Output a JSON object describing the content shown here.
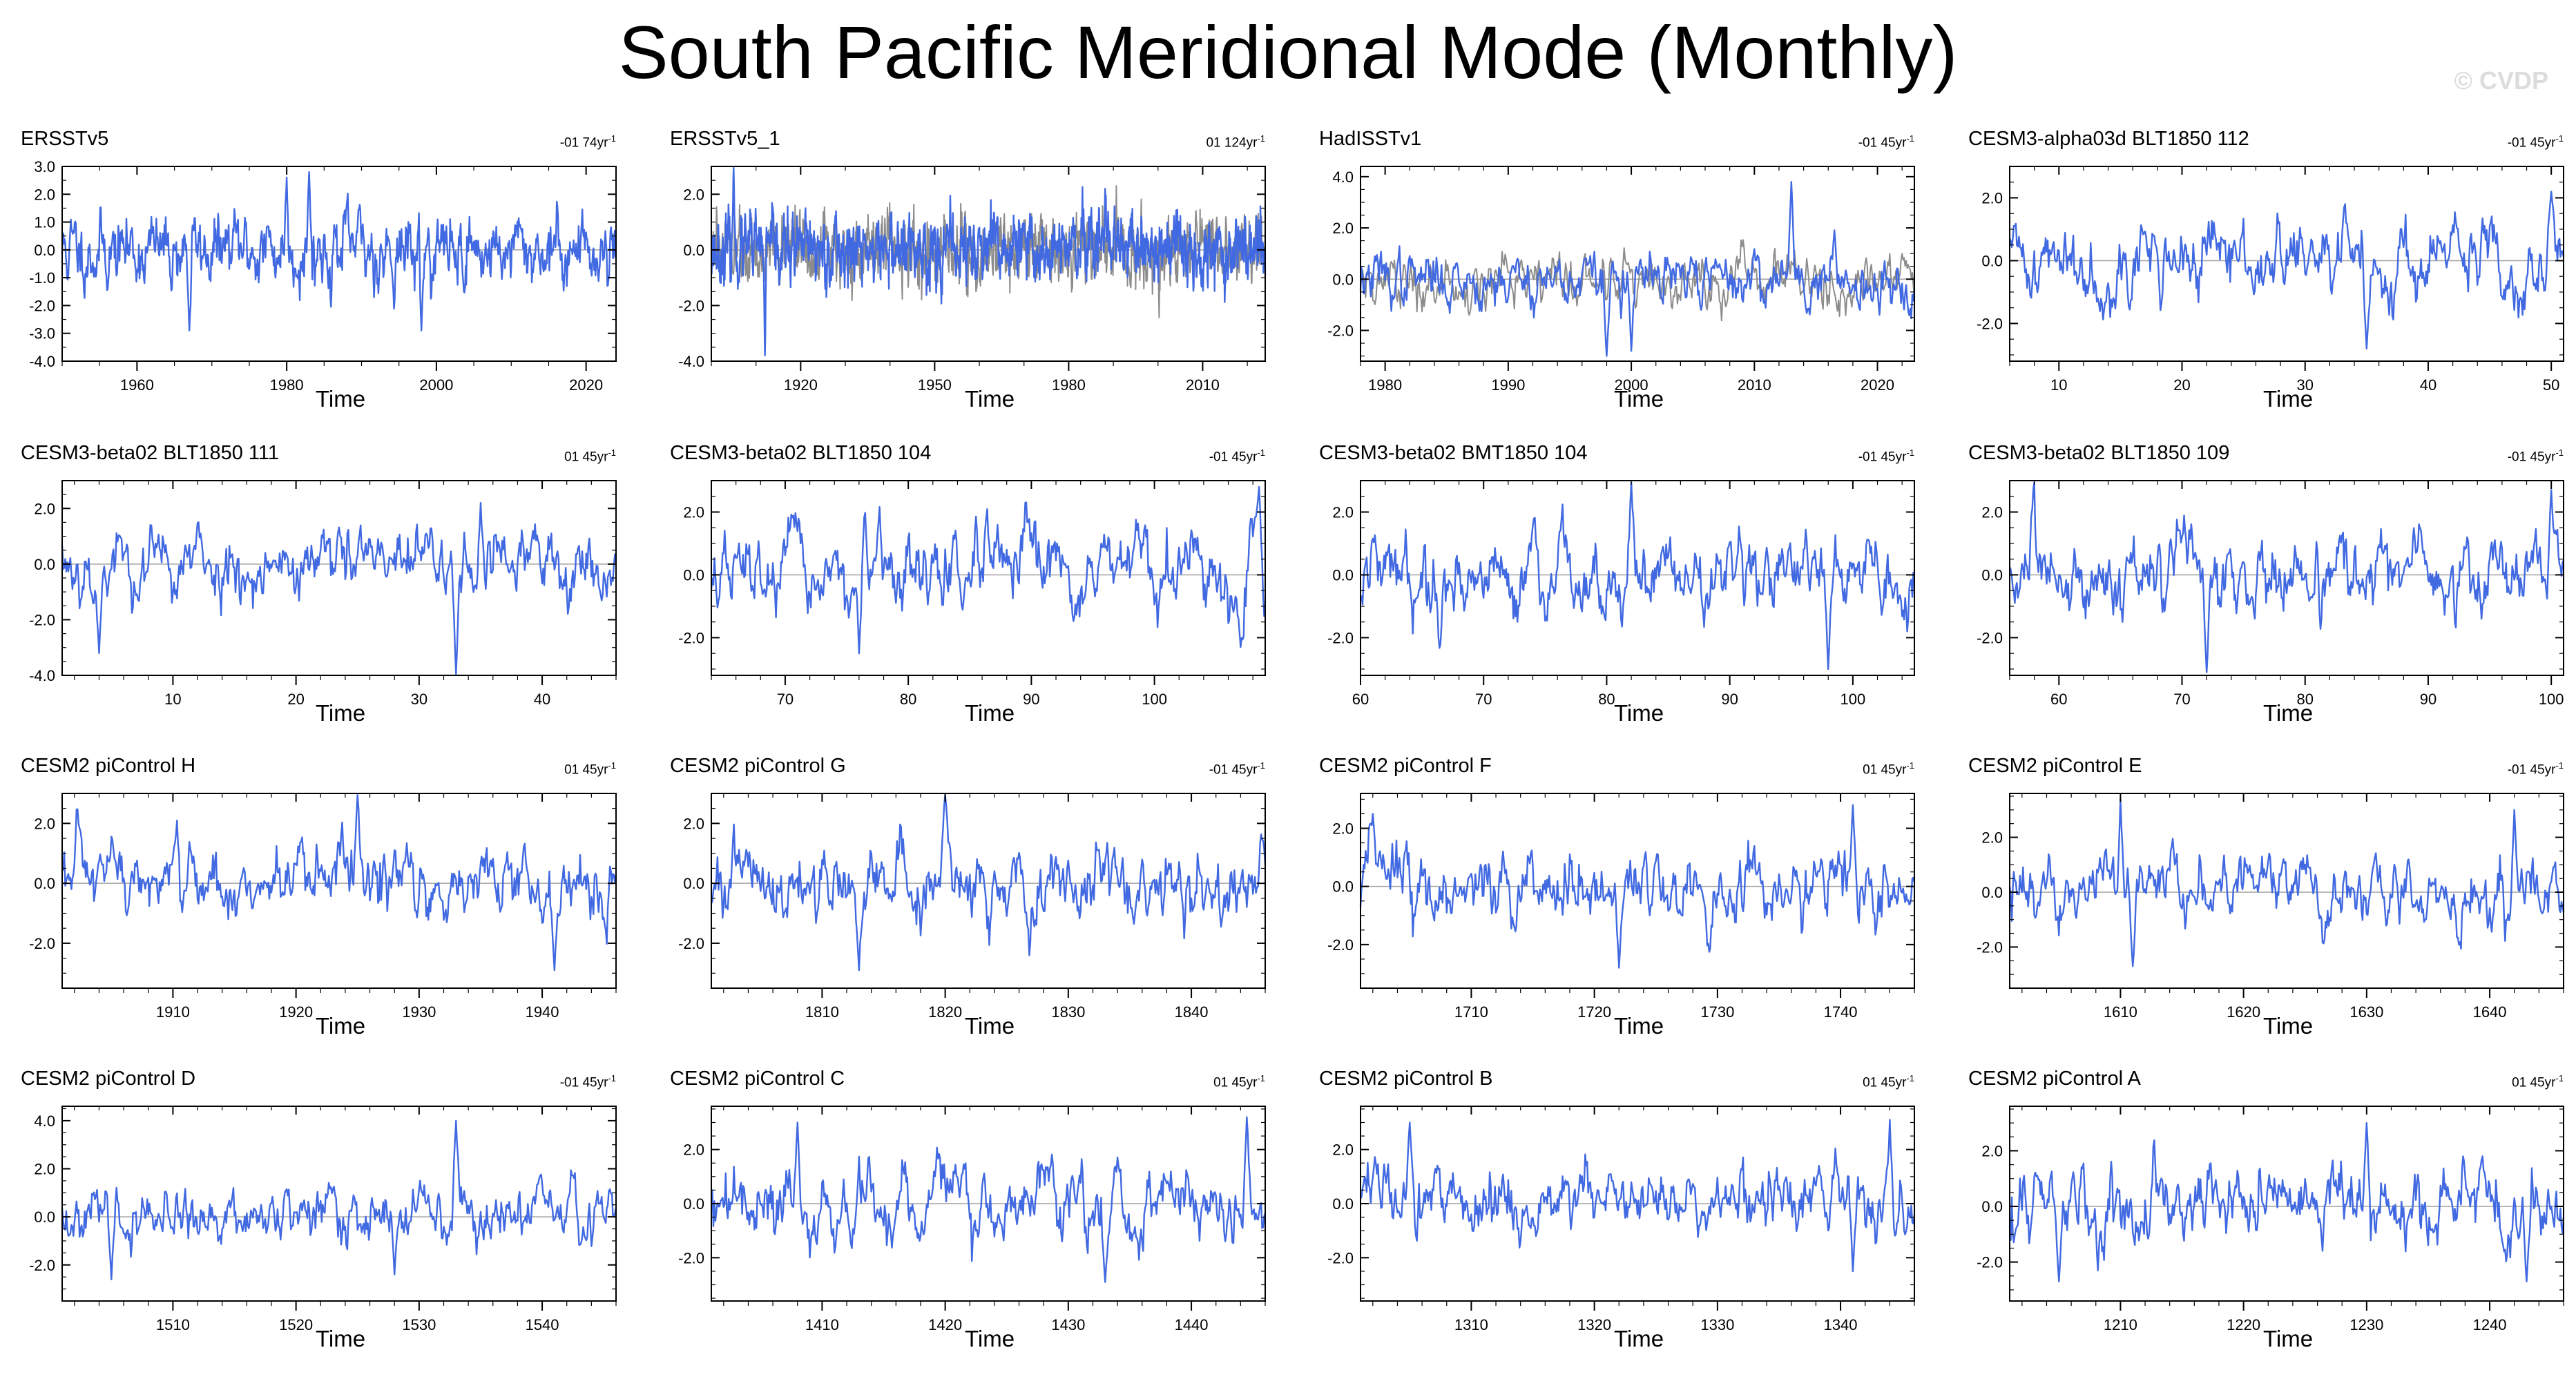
{
  "title": "South Pacific Meridional Mode (Monthly)",
  "watermark": "© CVDP",
  "colors": {
    "series": "#4169E1",
    "obs_ref": "#8c8c8c",
    "zero_line": "#a0a0a0",
    "frame": "#000000"
  },
  "chart_data": [
    {
      "type": "line",
      "title": "ERSSTv5",
      "trend": "-01 74yr",
      "trend_unit": "-1",
      "xlabel": "Time",
      "xlim": [
        1950,
        2024
      ],
      "ylim": [
        -4.0,
        3.0
      ],
      "yticks": [
        "3.0",
        "2.0",
        "1.0",
        "0.0",
        "-1.0",
        "-2.0",
        "-3.0",
        "-4.0"
      ],
      "ytick_values": [
        3,
        2,
        1,
        0,
        -1,
        -2,
        -3,
        -4
      ],
      "xticks": [
        "1960",
        "1980",
        "2000",
        "2020"
      ],
      "xtick_values": [
        1960,
        1980,
        2000,
        2020
      ],
      "seed": 11,
      "amp": 1.05,
      "noise": 0.45,
      "persist": 0.72,
      "peaks": [
        [
          1983,
          2.8
        ],
        [
          1980,
          2.6
        ],
        [
          1998,
          -2.9
        ],
        [
          1967,
          -2.9
        ]
      ],
      "series": [
        {
          "name": "ERSSTv5"
        }
      ]
    },
    {
      "type": "line",
      "title": "ERSSTv5_1",
      "trend": "01 124yr",
      "trend_unit": "-1",
      "xlabel": "Time",
      "xlim": [
        1900,
        2024
      ],
      "ylim": [
        -4.0,
        3.0
      ],
      "yticks": [
        "2.0",
        "0.0",
        "-2.0",
        "-4.0"
      ],
      "ytick_values": [
        2,
        0,
        -2,
        -4
      ],
      "xticks": [
        "1920",
        "1950",
        "1980",
        "2010"
      ],
      "xtick_values": [
        1920,
        1950,
        1980,
        2010
      ],
      "seed": 23,
      "amp": 1.0,
      "noise": 0.5,
      "persist": 0.6,
      "peaks": [
        [
          1912,
          -3.8
        ],
        [
          1905,
          3.0
        ]
      ],
      "series": [
        {
          "name": "ERSSTv5_1"
        },
        {
          "name": "reference",
          "ref": true
        }
      ]
    },
    {
      "type": "line",
      "title": "HadISSTv1",
      "trend": "-01 45yr",
      "trend_unit": "-1",
      "xlabel": "Time",
      "xlim": [
        1978,
        2023
      ],
      "ylim": [
        -3.2,
        4.4
      ],
      "yticks": [
        "4.0",
        "2.0",
        "0.0",
        "-2.0"
      ],
      "ytick_values": [
        4,
        2,
        0,
        -2
      ],
      "xticks": [
        "1980",
        "1990",
        "2000",
        "2010",
        "2020"
      ],
      "xtick_values": [
        1980,
        1990,
        2000,
        2010,
        2020
      ],
      "seed": 37,
      "amp": 0.9,
      "noise": 0.45,
      "persist": 0.7,
      "peaks": [
        [
          2013,
          3.8
        ],
        [
          1998,
          -3.0
        ],
        [
          2000,
          -2.8
        ]
      ],
      "series": [
        {
          "name": "HadISSTv1"
        },
        {
          "name": "reference",
          "ref": true
        }
      ]
    },
    {
      "type": "line",
      "title": "CESM3-alpha03d BLT1850 112",
      "trend": "-01 45yr",
      "trend_unit": "-1",
      "xlabel": "Time",
      "xlim": [
        6,
        51
      ],
      "ylim": [
        -3.2,
        3.0
      ],
      "yticks": [
        "2.0",
        "0.0",
        "-2.0"
      ],
      "ytick_values": [
        2,
        0,
        -2
      ],
      "xticks": [
        "10",
        "20",
        "30",
        "40",
        "50"
      ],
      "xtick_values": [
        10,
        20,
        30,
        40,
        50
      ],
      "seed": 41,
      "amp": 0.95,
      "noise": 0.45,
      "persist": 0.78,
      "peaks": [
        [
          35,
          -2.8
        ],
        [
          50,
          2.2
        ]
      ],
      "series": [
        {
          "name": "CESM3-alpha03d BLT1850 112"
        }
      ]
    },
    {
      "type": "line",
      "title": "CESM3-beta02 BLT1850 111",
      "trend": "01 45yr",
      "trend_unit": "-1",
      "xlabel": "Time",
      "xlim": [
        1,
        46
      ],
      "ylim": [
        -4.0,
        3.0
      ],
      "yticks": [
        "2.0",
        "0.0",
        "-2.0",
        "-4.0"
      ],
      "ytick_values": [
        2,
        0,
        -2,
        -4
      ],
      "xticks": [
        "10",
        "20",
        "30",
        "40"
      ],
      "xtick_values": [
        10,
        20,
        30,
        40
      ],
      "seed": 53,
      "amp": 1.05,
      "noise": 0.45,
      "persist": 0.75,
      "peaks": [
        [
          33,
          -4.0
        ],
        [
          35,
          2.2
        ],
        [
          4,
          -3.2
        ]
      ],
      "series": [
        {
          "name": "CESM3-beta02 BLT1850 111"
        }
      ]
    },
    {
      "type": "line",
      "title": "CESM3-beta02 BLT1850 104",
      "trend": "-01 45yr",
      "trend_unit": "-1",
      "xlabel": "Time",
      "xlim": [
        64,
        109
      ],
      "ylim": [
        -3.2,
        3.0
      ],
      "yticks": [
        "2.0",
        "0.0",
        "-2.0"
      ],
      "ytick_values": [
        2,
        0,
        -2
      ],
      "xticks": [
        "70",
        "80",
        "90",
        "100"
      ],
      "xtick_values": [
        70,
        80,
        90,
        100
      ],
      "seed": 67,
      "amp": 1.0,
      "noise": 0.45,
      "persist": 0.76,
      "peaks": [
        [
          108.5,
          2.8
        ],
        [
          107,
          -2.3
        ],
        [
          76,
          -2.5
        ]
      ],
      "series": [
        {
          "name": "CESM3-beta02 BLT1850 104"
        }
      ]
    },
    {
      "type": "line",
      "title": "CESM3-beta02 BMT1850 104",
      "trend": "-01 45yr",
      "trend_unit": "-1",
      "xlabel": "Time",
      "xlim": [
        60,
        105
      ],
      "ylim": [
        -3.2,
        3.0
      ],
      "yticks": [
        "2.0",
        "0.0",
        "-2.0"
      ],
      "ytick_values": [
        2,
        0,
        -2
      ],
      "xticks": [
        "60",
        "70",
        "80",
        "90",
        "100"
      ],
      "xtick_values": [
        60,
        70,
        80,
        90,
        100
      ],
      "seed": 79,
      "amp": 1.0,
      "noise": 0.45,
      "persist": 0.76,
      "peaks": [
        [
          82,
          3.0
        ],
        [
          98,
          -3.0
        ]
      ],
      "series": [
        {
          "name": "CESM3-beta02 BMT1850 104"
        }
      ]
    },
    {
      "type": "line",
      "title": "CESM3-beta02 BLT1850 109",
      "trend": "-01 45yr",
      "trend_unit": "-1",
      "xlabel": "Time",
      "xlim": [
        56,
        101
      ],
      "ylim": [
        -3.2,
        3.0
      ],
      "yticks": [
        "2.0",
        "0.0",
        "-2.0"
      ],
      "ytick_values": [
        2,
        0,
        -2
      ],
      "xticks": [
        "60",
        "70",
        "80",
        "90",
        "100"
      ],
      "xtick_values": [
        60,
        70,
        80,
        90,
        100
      ],
      "seed": 83,
      "amp": 1.0,
      "noise": 0.45,
      "persist": 0.76,
      "peaks": [
        [
          100,
          2.7
        ],
        [
          72,
          -3.1
        ]
      ],
      "series": [
        {
          "name": "CESM3-beta02 BLT1850 109"
        }
      ]
    },
    {
      "type": "line",
      "title": "CESM2 piControl H",
      "trend": "01 45yr",
      "trend_unit": "-1",
      "xlabel": "Time",
      "xlim": [
        1901,
        1946
      ],
      "ylim": [
        -3.5,
        3.0
      ],
      "yticks": [
        "2.0",
        "0.0",
        "-2.0"
      ],
      "ytick_values": [
        2,
        0,
        -2
      ],
      "xticks": [
        "1910",
        "1920",
        "1930",
        "1940"
      ],
      "xtick_values": [
        1910,
        1920,
        1930,
        1940
      ],
      "seed": 97,
      "amp": 1.0,
      "noise": 0.45,
      "persist": 0.76,
      "peaks": [
        [
          1925,
          3.0
        ],
        [
          1941,
          -2.9
        ]
      ],
      "series": [
        {
          "name": "CESM2 piControl H"
        }
      ]
    },
    {
      "type": "line",
      "title": "CESM2 piControl G",
      "trend": "-01 45yr",
      "trend_unit": "-1",
      "xlabel": "Time",
      "xlim": [
        1801,
        1846
      ],
      "ylim": [
        -3.5,
        3.0
      ],
      "yticks": [
        "2.0",
        "0.0",
        "-2.0"
      ],
      "ytick_values": [
        2,
        0,
        -2
      ],
      "xticks": [
        "1810",
        "1820",
        "1830",
        "1840"
      ],
      "xtick_values": [
        1810,
        1820,
        1830,
        1840
      ],
      "seed": 101,
      "amp": 1.0,
      "noise": 0.45,
      "persist": 0.76,
      "peaks": [
        [
          1820,
          3.0
        ],
        [
          1813,
          -2.9
        ]
      ],
      "series": [
        {
          "name": "CESM2 piControl G"
        }
      ]
    },
    {
      "type": "line",
      "title": "CESM2 piControl F",
      "trend": "01 45yr",
      "trend_unit": "-1",
      "xlabel": "Time",
      "xlim": [
        1701,
        1746
      ],
      "ylim": [
        -3.5,
        3.2
      ],
      "yticks": [
        "2.0",
        "0.0",
        "-2.0"
      ],
      "ytick_values": [
        2,
        0,
        -2
      ],
      "xticks": [
        "1710",
        "1720",
        "1730",
        "1740"
      ],
      "xtick_values": [
        1710,
        1720,
        1730,
        1740
      ],
      "seed": 113,
      "amp": 1.0,
      "noise": 0.45,
      "persist": 0.76,
      "peaks": [
        [
          1702,
          2.5
        ],
        [
          1722,
          -2.8
        ],
        [
          1741,
          2.8
        ]
      ],
      "series": [
        {
          "name": "CESM2 piControl F"
        }
      ]
    },
    {
      "type": "line",
      "title": "CESM2 piControl E",
      "trend": "-01 45yr",
      "trend_unit": "-1",
      "xlabel": "Time",
      "xlim": [
        1601,
        1646
      ],
      "ylim": [
        -3.5,
        3.6
      ],
      "yticks": [
        "2.0",
        "0.0",
        "-2.0"
      ],
      "ytick_values": [
        2,
        0,
        -2
      ],
      "xticks": [
        "1610",
        "1620",
        "1630",
        "1640"
      ],
      "xtick_values": [
        1610,
        1620,
        1630,
        1640
      ],
      "seed": 127,
      "amp": 0.95,
      "noise": 0.45,
      "persist": 0.77,
      "peaks": [
        [
          1610,
          3.4
        ],
        [
          1611,
          -2.7
        ],
        [
          1642,
          3.0
        ]
      ],
      "series": [
        {
          "name": "CESM2 piControl E"
        }
      ]
    },
    {
      "type": "line",
      "title": "CESM2 piControl D",
      "trend": "-01 45yr",
      "trend_unit": "-1",
      "xlabel": "Time",
      "xlim": [
        1501,
        1546
      ],
      "ylim": [
        -3.5,
        4.6
      ],
      "yticks": [
        "4.0",
        "2.0",
        "0.0",
        "-2.0"
      ],
      "ytick_values": [
        4,
        2,
        0,
        -2
      ],
      "xticks": [
        "1510",
        "1520",
        "1530",
        "1540"
      ],
      "xtick_values": [
        1510,
        1520,
        1530,
        1540
      ],
      "seed": 131,
      "amp": 0.95,
      "noise": 0.45,
      "persist": 0.77,
      "peaks": [
        [
          1533,
          4.0
        ],
        [
          1505,
          -2.6
        ],
        [
          1528,
          -2.4
        ]
      ],
      "series": [
        {
          "name": "CESM2 piControl D"
        }
      ]
    },
    {
      "type": "line",
      "title": "CESM2 piControl C",
      "trend": "01 45yr",
      "trend_unit": "-1",
      "xlabel": "Time",
      "xlim": [
        1401,
        1446
      ],
      "ylim": [
        -3.6,
        3.6
      ],
      "yticks": [
        "2.0",
        "0.0",
        "-2.0"
      ],
      "ytick_values": [
        2,
        0,
        -2
      ],
      "xticks": [
        "1410",
        "1420",
        "1430",
        "1440"
      ],
      "xtick_values": [
        1410,
        1420,
        1430,
        1440
      ],
      "seed": 139,
      "amp": 1.0,
      "noise": 0.45,
      "persist": 0.77,
      "peaks": [
        [
          1444.5,
          3.2
        ],
        [
          1433,
          -2.9
        ],
        [
          1408,
          3.0
        ]
      ],
      "series": [
        {
          "name": "CESM2 piControl C"
        }
      ]
    },
    {
      "type": "line",
      "title": "CESM2 piControl B",
      "trend": "01 45yr",
      "trend_unit": "-1",
      "xlabel": "Time",
      "xlim": [
        1301,
        1346
      ],
      "ylim": [
        -3.6,
        3.6
      ],
      "yticks": [
        "2.0",
        "0.0",
        "-2.0"
      ],
      "ytick_values": [
        2,
        0,
        -2
      ],
      "xticks": [
        "1310",
        "1320",
        "1330",
        "1340"
      ],
      "xtick_values": [
        1310,
        1320,
        1330,
        1340
      ],
      "seed": 149,
      "amp": 1.0,
      "noise": 0.45,
      "persist": 0.77,
      "peaks": [
        [
          1305,
          3.0
        ],
        [
          1344,
          3.1
        ],
        [
          1341,
          -2.5
        ]
      ],
      "series": [
        {
          "name": "CESM2 piControl B"
        }
      ]
    },
    {
      "type": "line",
      "title": "CESM2 piControl A",
      "trend": "01 45yr",
      "trend_unit": "-1",
      "xlabel": "Time",
      "xlim": [
        1201,
        1246
      ],
      "ylim": [
        -3.4,
        3.6
      ],
      "yticks": [
        "2.0",
        "0.0",
        "-2.0"
      ],
      "ytick_values": [
        2,
        0,
        -2
      ],
      "xticks": [
        "1210",
        "1220",
        "1230",
        "1240"
      ],
      "xtick_values": [
        1210,
        1220,
        1230,
        1240
      ],
      "seed": 157,
      "amp": 1.0,
      "noise": 0.45,
      "persist": 0.77,
      "peaks": [
        [
          1230,
          3.0
        ],
        [
          1243,
          -2.7
        ],
        [
          1205,
          -2.7
        ]
      ],
      "series": [
        {
          "name": "CESM2 piControl A"
        }
      ]
    }
  ]
}
